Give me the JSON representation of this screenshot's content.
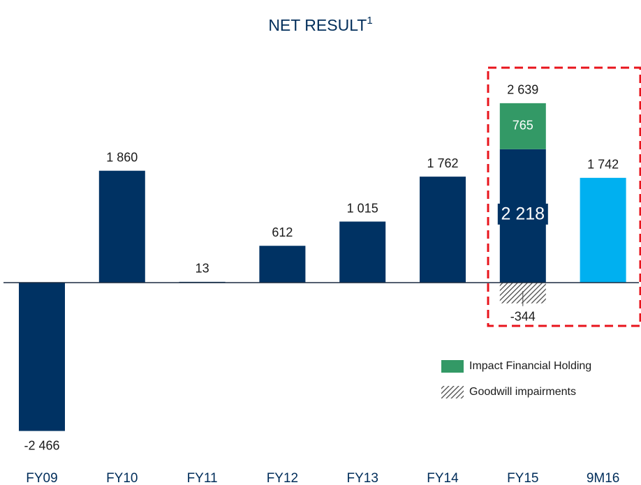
{
  "chart_data": {
    "type": "bar",
    "title": "NET RESULT",
    "title_superscript": "1",
    "categories": [
      "FY09",
      "FY10",
      "FY11",
      "FY12",
      "FY13",
      "FY14",
      "FY15",
      "9M16"
    ],
    "series": [
      {
        "values": [
          -2466,
          1860,
          13,
          612,
          1015,
          1762,
          2218,
          1742
        ],
        "value_labels": [
          "-2 466",
          "1 860",
          "13",
          "612",
          "1 015",
          "1 762",
          "2 218",
          "1 742"
        ],
        "colors": [
          "#003263",
          "#003263",
          "#003263",
          "#003263",
          "#003263",
          "#003263",
          "#003263",
          "#00b0f0"
        ]
      },
      {
        "name": "Impact Financial Holding",
        "color": "#339966",
        "values": [
          null,
          null,
          null,
          null,
          null,
          null,
          765,
          null
        ]
      },
      {
        "name": "Goodwill impairments",
        "color": "hatch",
        "values": [
          null,
          null,
          null,
          null,
          null,
          null,
          -344,
          null
        ]
      }
    ],
    "totals": {
      "values": [
        null,
        null,
        null,
        null,
        null,
        null,
        2639,
        null
      ],
      "value_labels": [
        null,
        null,
        null,
        null,
        null,
        null,
        "2 639",
        null
      ]
    }
  }
}
